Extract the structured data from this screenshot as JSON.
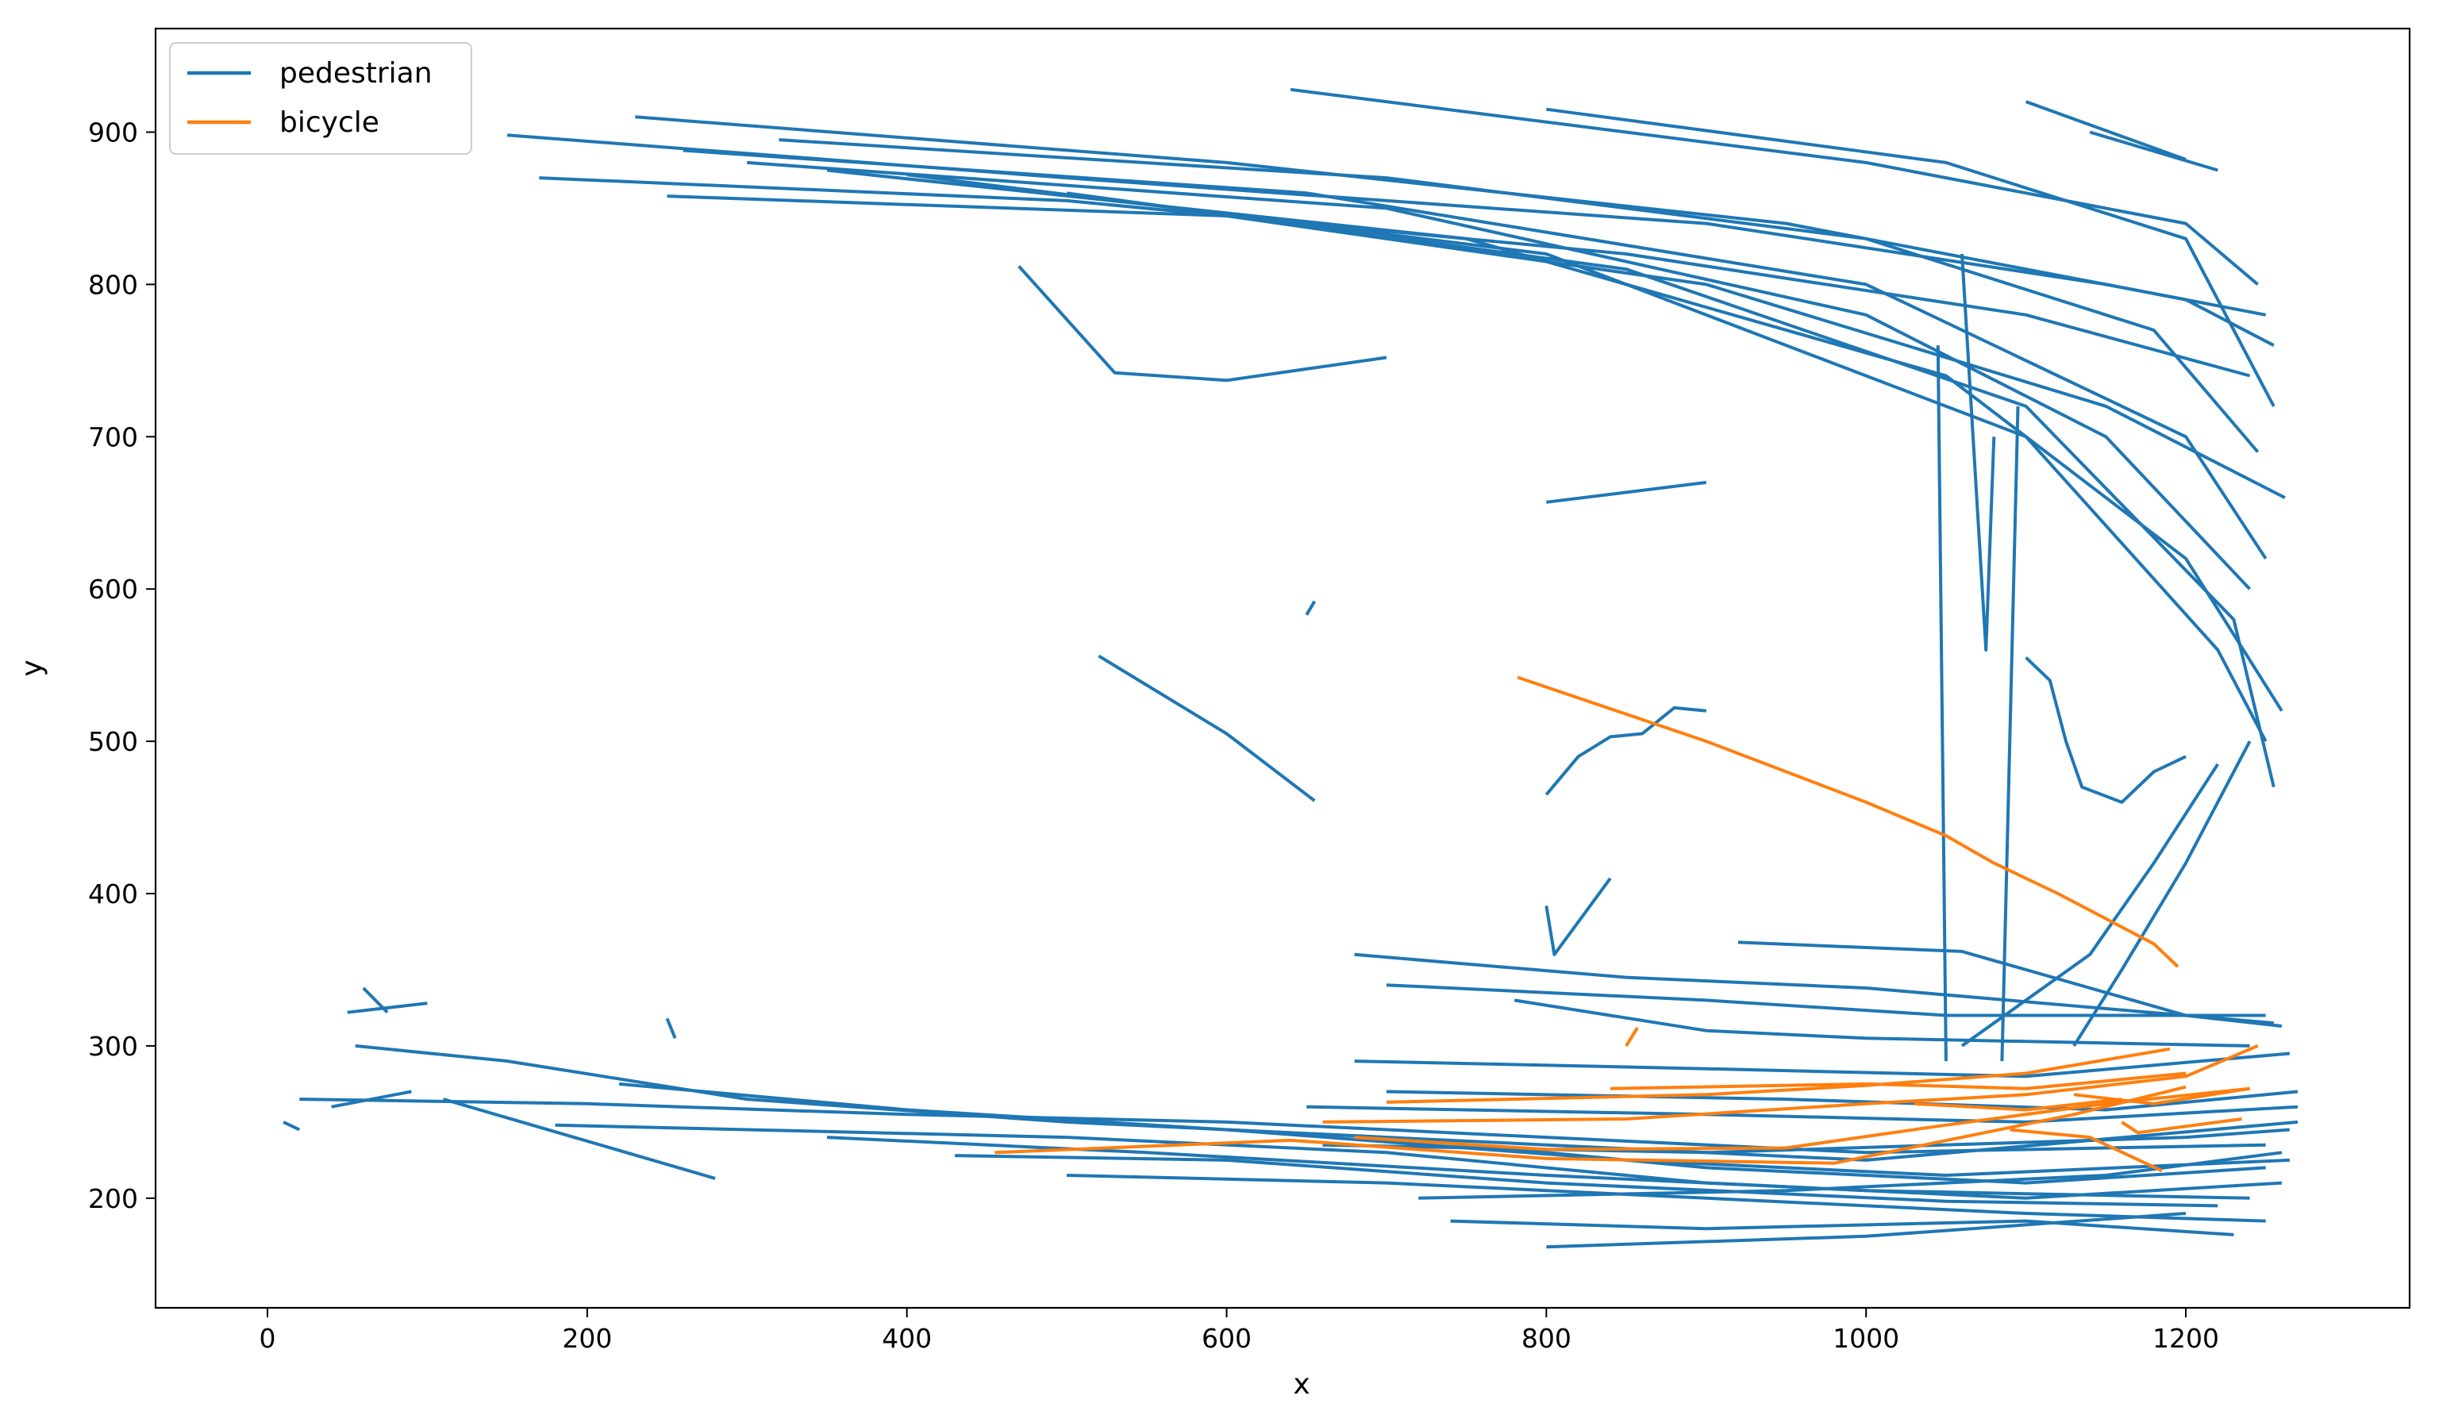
{
  "chart_data": {
    "type": "line",
    "title": "",
    "xlabel": "x",
    "ylabel": "y",
    "xlim": [
      -70,
      1340
    ],
    "ylim": [
      128,
      968
    ],
    "xticks": [
      0,
      200,
      400,
      600,
      800,
      1000,
      1200
    ],
    "yticks": [
      200,
      300,
      400,
      500,
      600,
      700,
      800,
      900
    ],
    "xtick_labels": [
      "0",
      "200",
      "400",
      "600",
      "800",
      "1000",
      "1200"
    ],
    "ytick_labels": [
      "200",
      "300",
      "400",
      "500",
      "600",
      "700",
      "800",
      "900"
    ],
    "grid": false,
    "legend_position": "top-left",
    "legend": [
      {
        "label": "pedestrian",
        "color": "#1f77b4"
      },
      {
        "label": "bicycle",
        "color": "#ff7f0e"
      }
    ],
    "series": [
      {
        "name": "pedestrian",
        "color": "#1f77b4",
        "lines": [
          [
            [
              150,
              898
            ],
            [
              500,
              870
            ],
            [
              900,
              840
            ],
            [
              1150,
              800
            ],
            [
              1250,
              780
            ]
          ],
          [
            [
              170,
              870
            ],
            [
              500,
              855
            ],
            [
              850,
              820
            ],
            [
              1100,
              780
            ],
            [
              1240,
              740
            ]
          ],
          [
            [
              230,
              910
            ],
            [
              600,
              880
            ],
            [
              950,
              840
            ],
            [
              1200,
              790
            ],
            [
              1255,
              760
            ]
          ],
          [
            [
              260,
              888
            ],
            [
              650,
              860
            ],
            [
              1000,
              800
            ],
            [
              1200,
              700
            ],
            [
              1250,
              620
            ]
          ],
          [
            [
              300,
              880
            ],
            [
              700,
              850
            ],
            [
              1000,
              780
            ],
            [
              1150,
              700
            ],
            [
              1240,
              600
            ]
          ],
          [
            [
              350,
              875
            ],
            [
              750,
              830
            ],
            [
              1050,
              740
            ],
            [
              1200,
              620
            ],
            [
              1260,
              520
            ]
          ],
          [
            [
              400,
              872
            ],
            [
              800,
              820
            ],
            [
              1100,
              700
            ],
            [
              1220,
              560
            ],
            [
              1250,
              500
            ]
          ],
          [
            [
              250,
              858
            ],
            [
              600,
              845
            ],
            [
              900,
              800
            ],
            [
              1150,
              720
            ],
            [
              1262,
              660
            ]
          ],
          [
            [
              320,
              895
            ],
            [
              700,
              870
            ],
            [
              1000,
              830
            ],
            [
              1180,
              770
            ],
            [
              1245,
              690
            ]
          ],
          [
            [
              500,
              860
            ],
            [
              850,
              810
            ],
            [
              1100,
              720
            ],
            [
              1230,
              580
            ],
            [
              1255,
              470
            ]
          ],
          [
            [
              640,
              928
            ],
            [
              1000,
              880
            ],
            [
              1200,
              840
            ],
            [
              1245,
              800
            ]
          ],
          [
            [
              800,
              915
            ],
            [
              1050,
              880
            ],
            [
              1200,
              830
            ],
            [
              1255,
              720
            ]
          ],
          [
            [
              1100,
              920
            ],
            [
              1200,
              882
            ]
          ],
          [
            [
              1140,
              900
            ],
            [
              1220,
              875
            ]
          ],
          [
            [
              470,
              812
            ],
            [
              530,
              742
            ],
            [
              600,
              737
            ],
            [
              700,
              752
            ]
          ],
          [
            [
              800,
              657
            ],
            [
              900,
              670
            ]
          ],
          [
            [
              650,
              583
            ],
            [
              655,
              592
            ]
          ],
          [
            [
              520,
              556
            ],
            [
              600,
              505
            ],
            [
              655,
              461
            ]
          ],
          [
            [
              800,
              465
            ],
            [
              820,
              490
            ],
            [
              840,
              503
            ],
            [
              860,
              505
            ],
            [
              880,
              522
            ],
            [
              900,
              520
            ]
          ],
          [
            [
              1060,
              820
            ],
            [
              1075,
              560
            ],
            [
              1080,
              700
            ]
          ],
          [
            [
              1045,
              760
            ],
            [
              1050,
              290
            ]
          ],
          [
            [
              1095,
              720
            ],
            [
              1085,
              290
            ]
          ],
          [
            [
              1100,
              555
            ],
            [
              1115,
              540
            ],
            [
              1125,
              500
            ],
            [
              1135,
              470
            ],
            [
              1160,
              460
            ],
            [
              1180,
              480
            ],
            [
              1200,
              490
            ]
          ],
          [
            [
              1130,
              300
            ],
            [
              1160,
              350
            ],
            [
              1200,
              420
            ],
            [
              1240,
              500
            ]
          ],
          [
            [
              1060,
              300
            ],
            [
              1140,
              360
            ],
            [
              1180,
              420
            ],
            [
              1220,
              485
            ]
          ],
          [
            [
              10,
              250
            ],
            [
              20,
              245
            ]
          ],
          [
            [
              40,
              260
            ],
            [
              90,
              270
            ]
          ],
          [
            [
              60,
              338
            ],
            [
              75,
              322
            ]
          ],
          [
            [
              50,
              322
            ],
            [
              100,
              328
            ]
          ],
          [
            [
              55,
              300
            ],
            [
              150,
              290
            ],
            [
              300,
              265
            ],
            [
              500,
              250
            ],
            [
              700,
              240
            ],
            [
              900,
              220
            ],
            [
              1100,
              210
            ],
            [
              1250,
              220
            ]
          ],
          [
            [
              20,
              265
            ],
            [
              200,
              262
            ],
            [
              400,
              255
            ],
            [
              600,
              250
            ],
            [
              800,
              240
            ],
            [
              1000,
              230
            ],
            [
              1250,
              235
            ]
          ],
          [
            [
              110,
              265
            ],
            [
              280,
              213
            ]
          ],
          [
            [
              180,
              248
            ],
            [
              300,
              245
            ],
            [
              500,
              240
            ],
            [
              700,
              230
            ],
            [
              900,
              210
            ],
            [
              1100,
              200
            ],
            [
              1260,
              210
            ]
          ],
          [
            [
              220,
              275
            ],
            [
              400,
              258
            ],
            [
              600,
              245
            ],
            [
              850,
              225
            ],
            [
              1050,
              215
            ],
            [
              1265,
              225
            ]
          ],
          [
            [
              250,
              318
            ],
            [
              255,
              305
            ]
          ],
          [
            [
              350,
              240
            ],
            [
              550,
              230
            ],
            [
              800,
              215
            ],
            [
              1000,
              205
            ],
            [
              1240,
              200
            ]
          ],
          [
            [
              430,
              228
            ],
            [
              600,
              225
            ],
            [
              800,
              210
            ],
            [
              1050,
              198
            ],
            [
              1220,
              195
            ]
          ],
          [
            [
              500,
              215
            ],
            [
              700,
              210
            ],
            [
              900,
              200
            ],
            [
              1100,
              190
            ],
            [
              1250,
              185
            ]
          ],
          [
            [
              600,
              245
            ],
            [
              800,
              235
            ],
            [
              1000,
              225
            ],
            [
              1270,
              250
            ]
          ],
          [
            [
              650,
              260
            ],
            [
              900,
              255
            ],
            [
              1100,
              250
            ],
            [
              1270,
              260
            ]
          ],
          [
            [
              680,
              290
            ],
            [
              900,
              285
            ],
            [
              1100,
              280
            ],
            [
              1265,
              295
            ]
          ],
          [
            [
              700,
              340
            ],
            [
              900,
              330
            ],
            [
              1050,
              320
            ],
            [
              1250,
              320
            ]
          ],
          [
            [
              680,
              360
            ],
            [
              850,
              345
            ],
            [
              1000,
              338
            ],
            [
              1255,
              315
            ]
          ],
          [
            [
              780,
              330
            ],
            [
              900,
              310
            ],
            [
              1000,
              305
            ],
            [
              1240,
              300
            ]
          ],
          [
            [
              800,
              392
            ],
            [
              805,
              360
            ],
            [
              840,
              410
            ]
          ],
          [
            [
              920,
              368
            ],
            [
              1060,
              362
            ],
            [
              1200,
              320
            ],
            [
              1260,
              313
            ]
          ],
          [
            [
              740,
              185
            ],
            [
              900,
              180
            ],
            [
              1100,
              185
            ],
            [
              1230,
              176
            ]
          ],
          [
            [
              800,
              168
            ],
            [
              1000,
              175
            ],
            [
              1200,
              190
            ]
          ],
          [
            [
              660,
              235
            ],
            [
              900,
              230
            ],
            [
              1200,
              240
            ],
            [
              1265,
              245
            ]
          ],
          [
            [
              700,
              270
            ],
            [
              950,
              265
            ],
            [
              1150,
              258
            ],
            [
              1270,
              270
            ]
          ],
          [
            [
              720,
              200
            ],
            [
              950,
              205
            ],
            [
              1150,
              215
            ],
            [
              1260,
              230
            ]
          ]
        ]
      },
      {
        "name": "bicycle",
        "color": "#ff7f0e",
        "lines": [
          [
            [
              782,
              542
            ],
            [
              900,
              500
            ],
            [
              1000,
              460
            ],
            [
              1050,
              438
            ],
            [
              1080,
              420
            ],
            [
              1120,
              400
            ],
            [
              1180,
              367
            ],
            [
              1195,
              352
            ]
          ],
          [
            [
              455,
              230
            ],
            [
              640,
              238
            ],
            [
              800,
              226
            ],
            [
              980,
              223
            ],
            [
              1060,
              240
            ],
            [
              1130,
              255
            ],
            [
              1200,
              273
            ]
          ],
          [
            [
              660,
              250
            ],
            [
              850,
              252
            ],
            [
              1000,
              262
            ],
            [
              1100,
              268
            ],
            [
              1200,
              280
            ],
            [
              1245,
              300
            ]
          ],
          [
            [
              700,
              263
            ],
            [
              900,
              268
            ],
            [
              1000,
              274
            ],
            [
              1100,
              282
            ],
            [
              1190,
              298
            ]
          ],
          [
            [
              840,
              272
            ],
            [
              1000,
              275
            ],
            [
              1100,
              272
            ],
            [
              1200,
              282
            ]
          ],
          [
            [
              680,
              240
            ],
            [
              800,
              232
            ],
            [
              950,
              233
            ],
            [
              1050,
              248
            ],
            [
              1150,
              262
            ],
            [
              1240,
              272
            ]
          ],
          [
            [
              1090,
              245
            ],
            [
              1140,
              240
            ],
            [
              1185,
              218
            ]
          ],
          [
            [
              1130,
              268
            ],
            [
              1180,
              262
            ],
            [
              1240,
              272
            ]
          ],
          [
            [
              1030,
              262
            ],
            [
              1100,
              258
            ],
            [
              1160,
              265
            ]
          ],
          [
            [
              850,
              300
            ],
            [
              857,
              312
            ]
          ],
          [
            [
              1160,
              250
            ],
            [
              1170,
              243
            ],
            [
              1235,
              252
            ]
          ]
        ]
      }
    ]
  }
}
